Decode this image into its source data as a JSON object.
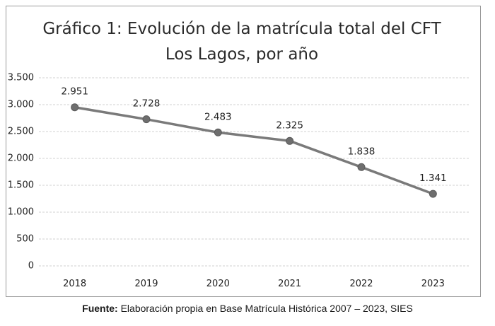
{
  "chart_data": {
    "type": "line",
    "title_lines": [
      "Gráfico 1: Evolución de la matrícula total del CFT",
      "Los Lagos, por año"
    ],
    "categories": [
      "2018",
      "2019",
      "2020",
      "2021",
      "2022",
      "2023"
    ],
    "series": [
      {
        "name": "Matrícula total",
        "values": [
          2951,
          2728,
          2483,
          2325,
          1838,
          1341
        ],
        "data_labels": [
          "2.951",
          "2.728",
          "2.483",
          "2.325",
          "1.838",
          "1.341"
        ]
      }
    ],
    "y_ticks": [
      0,
      500,
      1000,
      1500,
      2000,
      2500,
      3000,
      3500
    ],
    "y_tick_labels": [
      "0",
      "500",
      "1.000",
      "1.500",
      "2.000",
      "2.500",
      "3.000",
      "3.500"
    ],
    "ylim": [
      0,
      3500
    ],
    "xlabel": "",
    "ylabel": "",
    "grid": true,
    "legend": "none",
    "colors": {
      "line": "#7a7a7a",
      "marker": "#6e6e6e",
      "grid": "#d2d2d2"
    }
  },
  "source": {
    "lead": "Fuente:",
    "text": " Elaboración propia en Base Matrícula Histórica 2007 – 2023, SIES"
  }
}
